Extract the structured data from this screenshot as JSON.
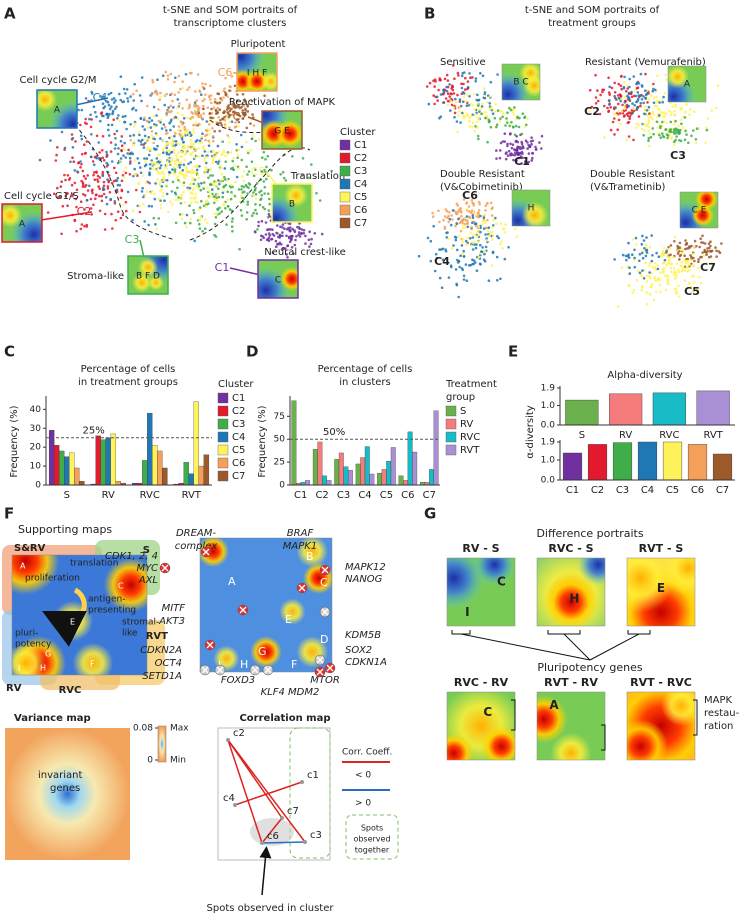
{
  "panel_labels": [
    "A",
    "B",
    "C",
    "D",
    "E",
    "F",
    "G"
  ],
  "panel_a": {
    "title": [
      "t-SNE and SOM portraits of",
      "transcriptome clusters"
    ],
    "annotations": [
      {
        "label": "Pluripotent",
        "cluster": "C6",
        "spots": "I H F"
      },
      {
        "label": "Cell cycle G2/M",
        "cluster": "C4",
        "spots": "A"
      },
      {
        "label": "Reactivation of MAPK",
        "cluster": "C7",
        "spots": "G E"
      },
      {
        "label": "Cell cycle G1/S",
        "cluster": "C2",
        "spots": "A"
      },
      {
        "label": "Translation",
        "cluster": "C5",
        "spots": "B"
      },
      {
        "label": "Stroma-like",
        "cluster": "C3",
        "spots": "B F D"
      },
      {
        "label": "Neural crest-like",
        "cluster": "C1",
        "spots": "C"
      }
    ],
    "legend_title": "Cluster"
  },
  "panel_b": {
    "title": [
      "t-SNE and SOM portraits of",
      "treatment groups"
    ],
    "groups": [
      {
        "name": [
          "Sensitive"
        ],
        "spots": "B C",
        "clusters": [
          "C1"
        ]
      },
      {
        "name": [
          "Resistant (Vemurafenib)"
        ],
        "spots": "A",
        "clusters": [
          "C2",
          "C3"
        ]
      },
      {
        "name": [
          "Double Resistant",
          "(V&Cobimetinib)"
        ],
        "spots": "H",
        "clusters": [
          "C6",
          "C4"
        ]
      },
      {
        "name": [
          "Double Resistant",
          "(V&Trametinib)"
        ],
        "spots": "C E",
        "clusters": [
          "C7",
          "C5"
        ]
      }
    ]
  },
  "chart_data": [
    {
      "type": "bar",
      "title": [
        "Percentage of cells",
        "in treatment groups"
      ],
      "ylabel": "Frequency (%)",
      "categories": [
        "S",
        "RV",
        "RVC",
        "RVT"
      ],
      "series": [
        {
          "name": "C1",
          "color": "#7030a0",
          "values": [
            29,
            0.5,
            1,
            0.5
          ]
        },
        {
          "name": "C2",
          "color": "#e3192d",
          "values": [
            21,
            26,
            1,
            1
          ]
        },
        {
          "name": "C3",
          "color": "#3fae49",
          "values": [
            18,
            24,
            13,
            12
          ]
        },
        {
          "name": "C4",
          "color": "#1f77b4",
          "values": [
            15,
            25,
            38,
            6
          ]
        },
        {
          "name": "C5",
          "color": "#fff35c",
          "values": [
            17,
            27,
            21,
            44
          ]
        },
        {
          "name": "C6",
          "color": "#f5a05a",
          "values": [
            9,
            2,
            18,
            10
          ]
        },
        {
          "name": "C7",
          "color": "#9c5a2a",
          "values": [
            2,
            1,
            9,
            16
          ]
        }
      ],
      "ylim": [
        0,
        46
      ],
      "yticks": [
        0,
        10,
        20,
        30,
        40
      ],
      "reference": {
        "value": 25,
        "label": "25%"
      },
      "legend_title": [
        "Cluster"
      ]
    },
    {
      "type": "bar",
      "title": [
        "Percentage of cells",
        "in clusters"
      ],
      "ylabel": "Frequency (%)",
      "categories": [
        "C1",
        "C2",
        "C3",
        "C4",
        "C5",
        "C6",
        "C7"
      ],
      "series": [
        {
          "name": "S",
          "color": "#6ab04c",
          "values": [
            92,
            39,
            28,
            23,
            13,
            10,
            3
          ]
        },
        {
          "name": "RV",
          "color": "#f47c7c",
          "values": [
            2,
            47,
            35,
            30,
            17,
            5,
            3
          ]
        },
        {
          "name": "RVC",
          "color": "#17bcc6",
          "values": [
            3,
            10,
            20,
            42,
            26,
            58,
            17
          ]
        },
        {
          "name": "RVT",
          "color": "#a98fd3",
          "values": [
            5,
            5,
            16,
            12,
            41,
            36,
            81
          ]
        }
      ],
      "ylim": [
        0,
        95
      ],
      "yticks": [
        0,
        25,
        50,
        75
      ],
      "reference": {
        "value": 50,
        "label": "50%"
      },
      "legend_title": [
        "Treatment",
        "group"
      ]
    },
    {
      "type": "bar",
      "title": [
        "Alpha-diversity"
      ],
      "categories": [
        "S",
        "RV",
        "RVC",
        "RVT"
      ],
      "values": [
        1.28,
        1.6,
        1.65,
        1.75
      ],
      "colors": [
        "#6ab04c",
        "#f47c7c",
        "#17bcc6",
        "#a98fd3"
      ],
      "ylim": [
        0,
        1.9
      ],
      "yticks": [
        {
          "value": 0,
          "label": "0.0"
        },
        {
          "value": 1,
          "label": "1.0"
        },
        1.9
      ]
    },
    {
      "type": "bar",
      "ylabel": "α-diversity",
      "categories": [
        "C1",
        "C2",
        "C3",
        "C4",
        "C5",
        "C6",
        "C7"
      ],
      "values": [
        1.35,
        1.78,
        1.87,
        1.9,
        1.9,
        1.78,
        1.3
      ],
      "colors": [
        "#7030a0",
        "#e3192d",
        "#3fae49",
        "#1f77b4",
        "#fff35c",
        "#f5a05a",
        "#9c5a2a"
      ],
      "ylim": [
        0,
        1.9
      ],
      "yticks": [
        {
          "value": 0,
          "label": "0.0"
        },
        {
          "value": 1,
          "label": "1.0"
        },
        1.9
      ]
    }
  ],
  "panel_f": {
    "title": "Supporting maps",
    "regions": [
      "S&RV",
      "S",
      "RVT",
      "RV",
      "RVC"
    ],
    "modules": [
      "proliferation",
      "translation",
      "antigen-",
      "presenting",
      "pluri-",
      "potency",
      "stromal-",
      "like"
    ],
    "support_spots": [
      "A",
      "C",
      "E",
      "G",
      "H",
      "I",
      "F"
    ],
    "gene_spots": [
      "A",
      "B",
      "C",
      "D",
      "E",
      "F",
      "G",
      "H",
      "I"
    ],
    "genes": [
      "DREAM-",
      "complex",
      "CDK1, 2, 4",
      "MYC",
      "AXL",
      "BRAF",
      "MAPK1",
      "MAPK12",
      "NANOG",
      "MITF",
      "AKT3",
      "KDM5B",
      "SOX2",
      "CDKN1A",
      "CDKN2A",
      "OCT4",
      "SETD1A",
      "FOXD3",
      "KLF4 MDM2",
      "MTOR"
    ],
    "variance": {
      "title": "Variance map",
      "colorbar_ticks": [
        0.08,
        0
      ],
      "colorbar_labels": [
        "Max",
        "Min"
      ],
      "note": [
        "invariant",
        "genes"
      ]
    },
    "correlation": {
      "title": "Correlation map",
      "spots": [
        "c2",
        "c4",
        "c1",
        "c7",
        "c6",
        "c3"
      ],
      "legend_title": "Corr. Coeff.",
      "legend": [
        "< 0",
        "> 0"
      ],
      "together": [
        "Spots",
        "observed",
        "together"
      ],
      "cluster_note": "Spots observed in cluster"
    }
  },
  "panel_g": {
    "title": "Difference portraits",
    "portraits": [
      {
        "title": "RV - S",
        "spots": [
          "C",
          "I"
        ]
      },
      {
        "title": "RVC - S",
        "spots": [
          "H"
        ]
      },
      {
        "title": "RVT - S",
        "spots": [
          "E"
        ]
      },
      {
        "title": "RVC - RV",
        "spots": [
          "C"
        ]
      },
      {
        "title": "RVT - RV",
        "spots": [
          "A"
        ]
      },
      {
        "title": "RVT - RVC",
        "spots": []
      }
    ],
    "pluripotency": "Pluripotency genes",
    "mapk": [
      "MAPK",
      "restau-",
      "ration"
    ]
  }
}
